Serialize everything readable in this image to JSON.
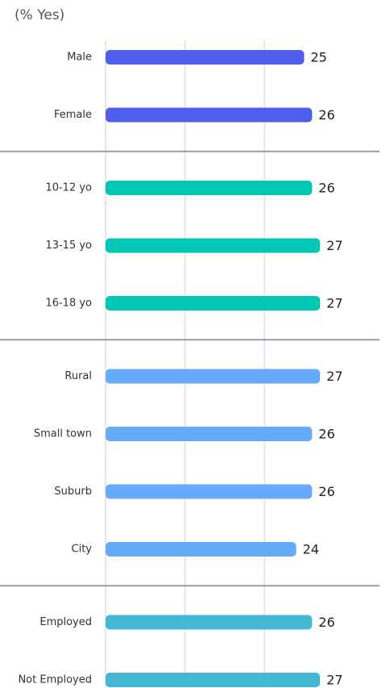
{
  "chart_data": {
    "type": "bar",
    "orientation": "horizontal",
    "subtitle": "(% Yes)",
    "groups": [
      {
        "color": "#4f5eec",
        "categories": [
          "Male",
          "Female"
        ],
        "values": [
          25,
          26
        ]
      },
      {
        "color": "#00c7b4",
        "categories": [
          "10-12 yo",
          "13-15 yo",
          "16-18 yo"
        ],
        "values": [
          26,
          27,
          27
        ]
      },
      {
        "color": "#66abfa",
        "categories": [
          "Rural",
          "Small town",
          "Suburb",
          "City"
        ],
        "values": [
          27,
          26,
          26,
          24
        ]
      },
      {
        "color": "#45b6d4",
        "categories": [
          "Employed",
          "Not Employed"
        ],
        "values": [
          26,
          27
        ]
      }
    ],
    "xlim": [
      0,
      35
    ],
    "xticks": [
      0,
      10,
      20
    ],
    "grid": true
  }
}
